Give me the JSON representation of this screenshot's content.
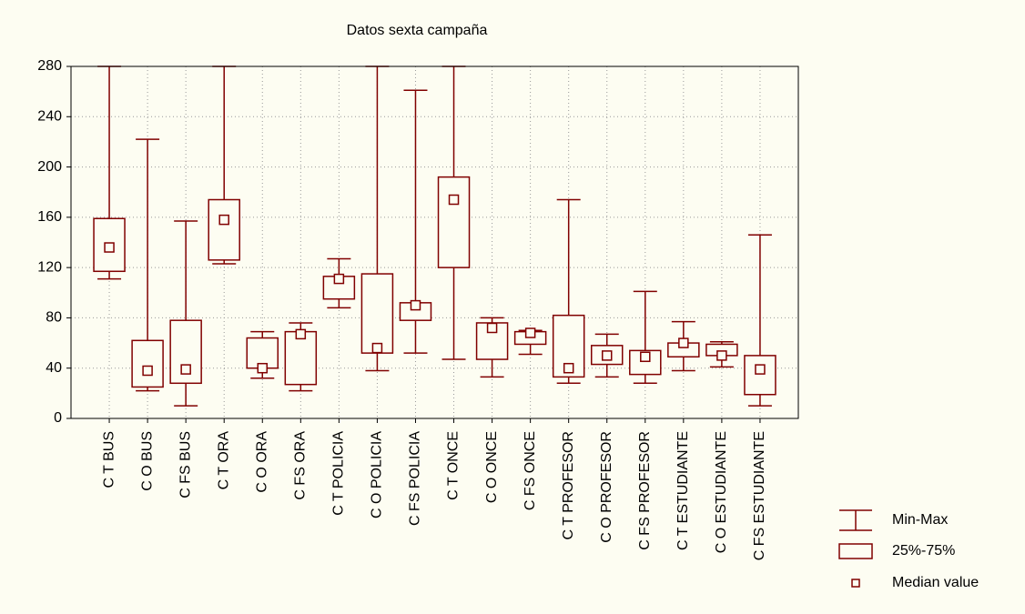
{
  "chart_data": {
    "type": "box",
    "title": "Datos sexta campaña",
    "categories": [
      "C T BUS",
      "C O BUS",
      "C FS BUS",
      "C T ORA",
      "C O ORA",
      "C FS ORA",
      "C T POLICIA",
      "C O POLICIA",
      "C FS POLICIA",
      "C T ONCE",
      "C O ONCE",
      "C FS ONCE",
      "C T PROFESOR",
      "C O PROFESOR",
      "C FS PROFESOR",
      "C T ESTUDIANTE",
      "C O ESTUDIANTE",
      "C FS ESTUDIANTE"
    ],
    "min": [
      111,
      22,
      10,
      123,
      32,
      22,
      88,
      38,
      52,
      47,
      33,
      51,
      28,
      33,
      28,
      38,
      41,
      10
    ],
    "q1": [
      117,
      25,
      28,
      126,
      40,
      27,
      95,
      52,
      78,
      120,
      47,
      59,
      33,
      43,
      35,
      49,
      50,
      19
    ],
    "median": [
      136,
      38,
      39,
      158,
      40,
      67,
      111,
      56,
      90,
      174,
      72,
      68,
      40,
      50,
      49,
      60,
      50,
      39
    ],
    "q3": [
      159,
      62,
      78,
      174,
      64,
      69,
      113,
      115,
      92,
      192,
      76,
      69,
      82,
      58,
      54,
      60,
      59,
      50
    ],
    "max": [
      280,
      222,
      157,
      280,
      69,
      76,
      127,
      280,
      261,
      280,
      80,
      70,
      174,
      67,
      101,
      77,
      61,
      146
    ],
    "color": "#800000",
    "legend_labels": [
      "Min-Max",
      "25%-75%",
      "Median value"
    ],
    "ylim": [
      0,
      280
    ],
    "yticks": [
      0,
      40,
      80,
      120,
      160,
      200,
      240,
      280
    ],
    "grid": true
  }
}
